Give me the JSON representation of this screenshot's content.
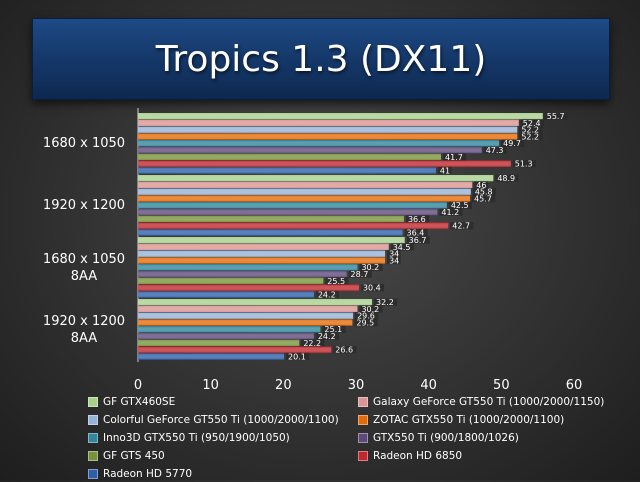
{
  "title": "Tropics 1.3 (DX11)",
  "chart_data": {
    "type": "bar",
    "orientation": "horizontal",
    "title": "Tropics 1.3 (DX11)",
    "categories": [
      "1680 x 1050",
      "1920 x 1200",
      "1680 x 1050\n8AA",
      "1920 x 1200\n8AA"
    ],
    "xlim": [
      0,
      60
    ],
    "xticks": [
      0,
      10,
      20,
      30,
      40,
      50,
      60
    ],
    "grid": false,
    "legend": "bottom",
    "series": [
      {
        "name": "GF GTX460SE",
        "color": "#a8d08d",
        "values": [
          55.7,
          48.9,
          36.7,
          32.2
        ]
      },
      {
        "name": "Galaxy GeForce GT550 Ti  (1000/2000/1150)",
        "color": "#d99594",
        "values": [
          52.4,
          46,
          34.5,
          30.2
        ]
      },
      {
        "name": "Colorful GeForce GT550 Ti (1000/2000/1100)",
        "color": "#95b3d7",
        "values": [
          52.2,
          45.8,
          34,
          29.6
        ]
      },
      {
        "name": "ZOTAC GTX550 Ti (1000/2000/1100)",
        "color": "#e36c0a",
        "values": [
          52.2,
          45.7,
          34,
          29.5
        ]
      },
      {
        "name": "Inno3D GTX550 Ti (950/1900/1050)",
        "color": "#31859c",
        "values": [
          49.7,
          42.5,
          30.2,
          25.1
        ]
      },
      {
        "name": "GTX550 Ti (900/1800/1026)",
        "color": "#5f497a",
        "values": [
          47.3,
          41.2,
          28.7,
          24.2
        ]
      },
      {
        "name": "GF GTS 450",
        "color": "#77933c",
        "values": [
          41.7,
          36.6,
          25.5,
          22.2
        ]
      },
      {
        "name": "Radeon HD 6850",
        "color": "#c0282d",
        "values": [
          51.3,
          42.7,
          30.4,
          26.6
        ]
      },
      {
        "name": "Radeon HD 5770",
        "color": "#2e5fa8",
        "values": [
          41,
          36.4,
          24.2,
          20.1
        ]
      }
    ]
  }
}
